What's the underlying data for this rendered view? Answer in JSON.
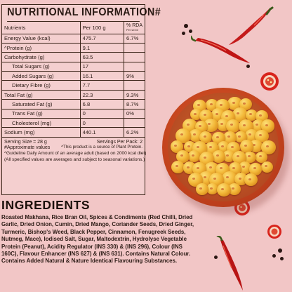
{
  "nutrition": {
    "title": "NUTRITIONAL INFORMATION#",
    "header": {
      "nutrients": "Nutrients",
      "per100g": "Per 100 g",
      "rda_top": "% RDA",
      "rda_sub": "Per serve"
    },
    "rows": [
      {
        "name": "Energy Value (kcal)",
        "value": "475.7",
        "rda": "6.7%",
        "indent": false
      },
      {
        "name": "^Protein (g)",
        "value": "9.1",
        "rda": "",
        "indent": false
      },
      {
        "name": "Carbohydrate (g)",
        "value": "63.5",
        "rda": "",
        "indent": false
      },
      {
        "name": "Total Sugars (g)",
        "value": "17",
        "rda": "",
        "indent": true
      },
      {
        "name": "Added Sugars (g)",
        "value": "16.1",
        "rda": "9%",
        "indent": true
      },
      {
        "name": "Dietary Fibre (g)",
        "value": "7.7",
        "rda": "",
        "indent": true
      },
      {
        "name": "Total Fat (g)",
        "value": "22.3",
        "rda": "9.3%",
        "indent": false
      },
      {
        "name": "Saturated Fat (g)",
        "value": "6.8",
        "rda": "8.7%",
        "indent": true
      },
      {
        "name": "Trans Fat (g)",
        "value": "0",
        "rda": "0%",
        "indent": true
      },
      {
        "name": "Cholesterol (mg)",
        "value": "0",
        "rda": "",
        "indent": true
      },
      {
        "name": "Sodium (mg)",
        "value": "440.1",
        "rda": "6.2%",
        "indent": false
      }
    ],
    "serving_size": "Serving Size = 28 g",
    "servings_per_pack": "Servings Per Pack: 2",
    "approx": "#Approximate values",
    "protein_note": "^This product is a source of Plant Protein.",
    "guideline": "^Guideline Daily Amount of an average adult (based on 2000 kcal diet)",
    "seasonal": "(All specified values are averages and subject to seasonal variations.)"
  },
  "ingredients": {
    "title": "INGREDIENTS",
    "text": "Roasted Makhana, Rice Bran Oil, Spices & Condiments (Red Chilli, Dried Garlic, Dried Onion, Cumin, Dried Mango, Coriander Seeds, Dried Ginger, Turmeric, Bishop's Weed, Black Pepper, Cinnamon, Fenugreek Seeds, Nutmeg, Mace), Iodised Salt, Sugar, Maltodextrin, Hydrolyse Vegetable Protein (Peanut), Acidity Regulator (INS 330) & (INS 296), Colour (INS 160C), Flavour Enhancer (INS 627) & (INS 631). Contains Natural Colour. Contains Added Natural & Nature Identical Flavouring Substances."
  },
  "colors": {
    "background": "#f2c6c6",
    "bowl": "#c2421c",
    "makhana": "#f3b93a",
    "chilli": "#c41a1a"
  },
  "icons": [
    "makhana-bowl",
    "red-chilli-icon",
    "chilli-slice-icon",
    "black-pepper-icon"
  ]
}
